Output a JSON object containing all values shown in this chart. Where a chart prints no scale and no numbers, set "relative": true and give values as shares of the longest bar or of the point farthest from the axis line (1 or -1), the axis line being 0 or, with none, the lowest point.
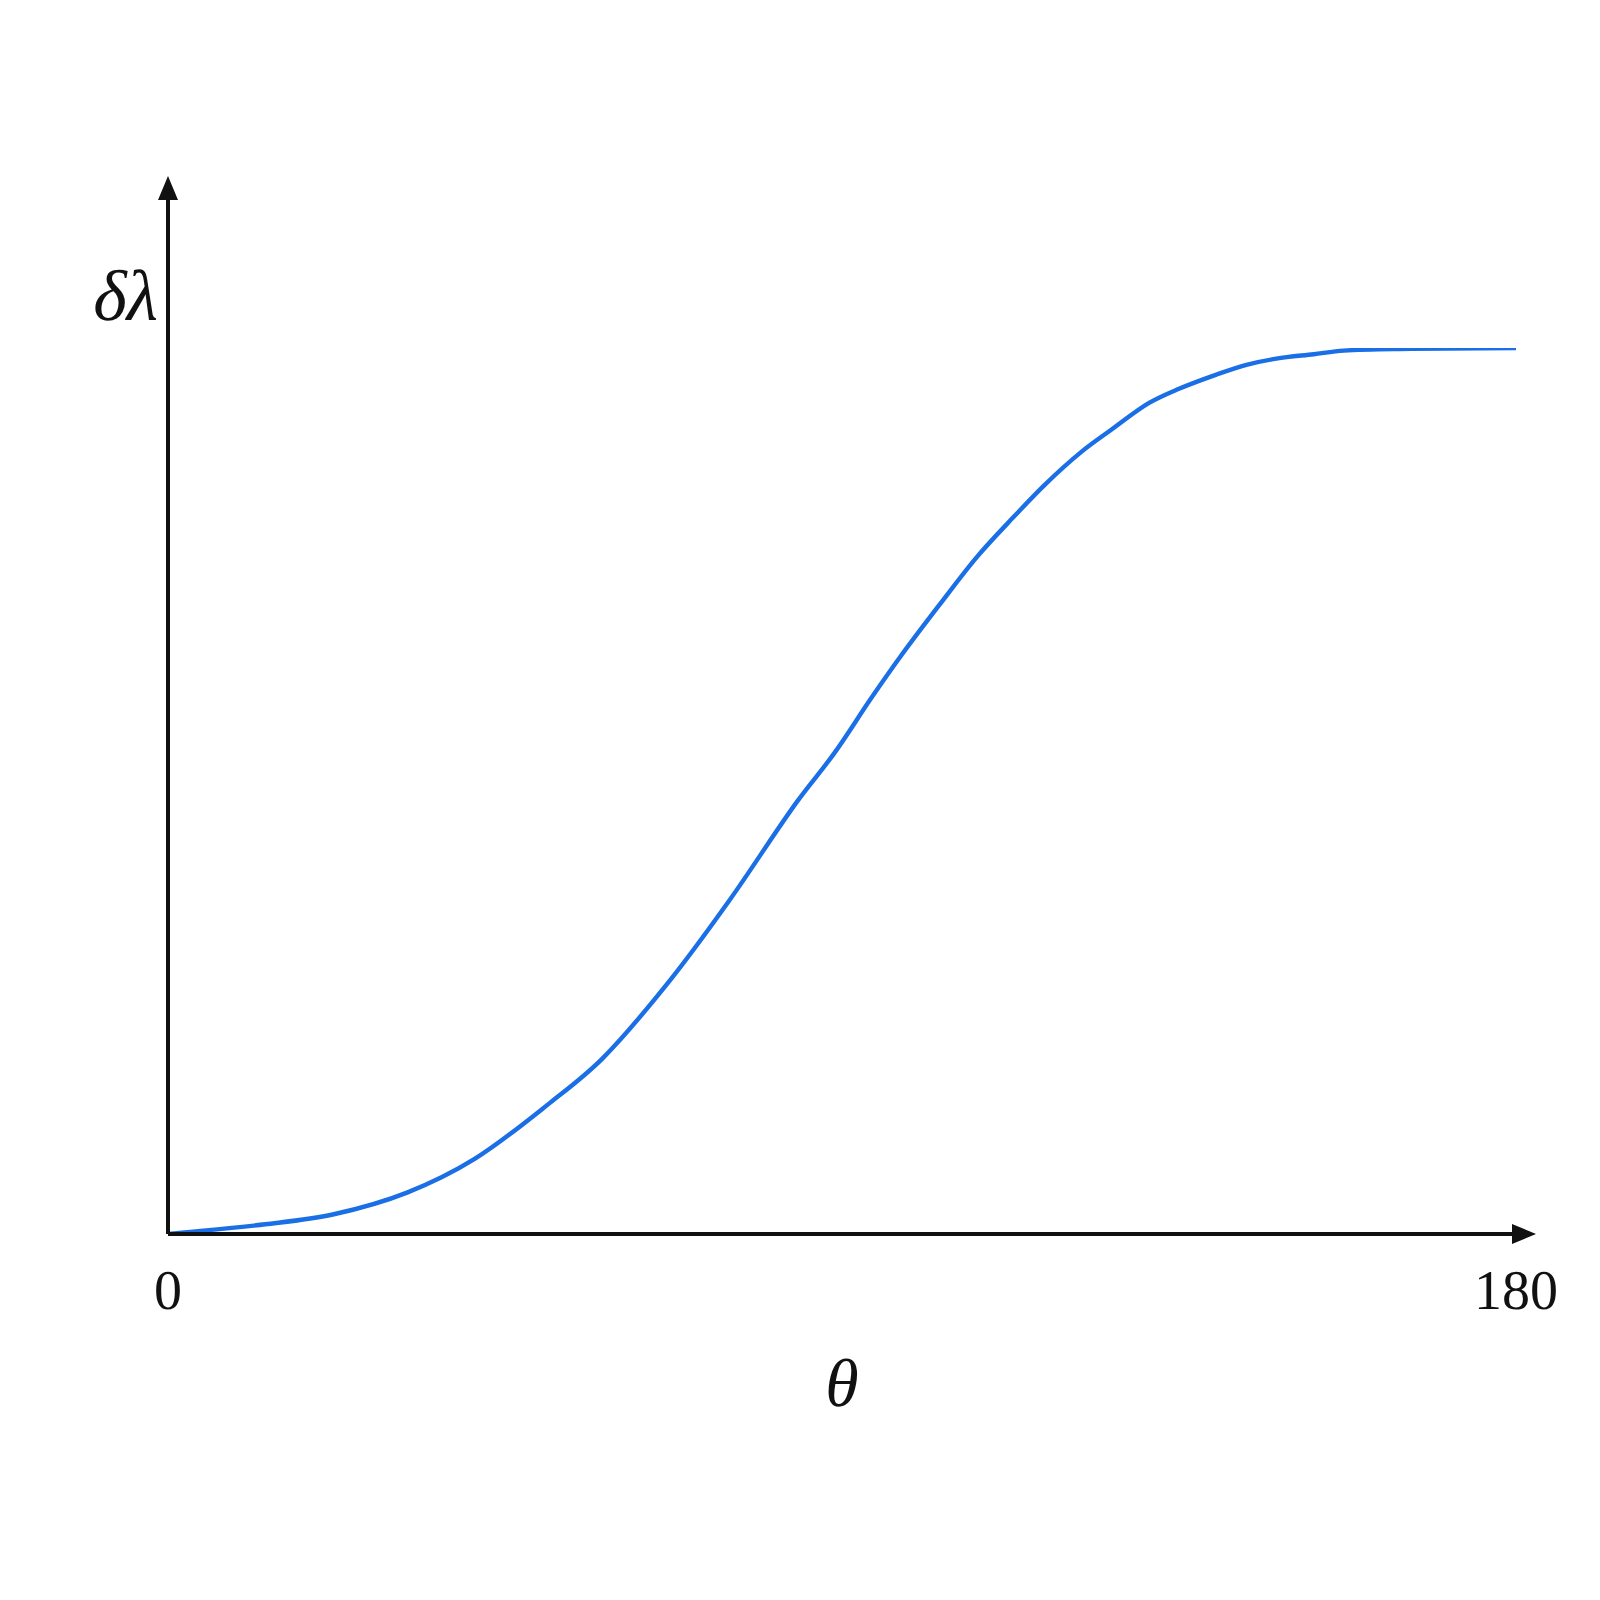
{
  "chart_data": {
    "type": "line",
    "xlabel": "θ",
    "ylabel": "δλ",
    "x": [
      0,
      13,
      22,
      32,
      41,
      51,
      58,
      67,
      75,
      84,
      89,
      94,
      98,
      103,
      108,
      113,
      117,
      122,
      126,
      131,
      135,
      140,
      144,
      148,
      153,
      157,
      166,
      180
    ],
    "values": [
      0,
      0.011,
      0.022,
      0.047,
      0.085,
      0.148,
      0.198,
      0.286,
      0.377,
      0.488,
      0.543,
      0.606,
      0.654,
      0.71,
      0.764,
      0.81,
      0.845,
      0.883,
      0.908,
      0.938,
      0.954,
      0.97,
      0.981,
      0.988,
      0.993,
      0.997,
      0.999,
      1
    ],
    "color": "#1a6fe6",
    "relative": true,
    "xlim": [
      0,
      180
    ],
    "xticks": [
      0,
      180
    ]
  }
}
